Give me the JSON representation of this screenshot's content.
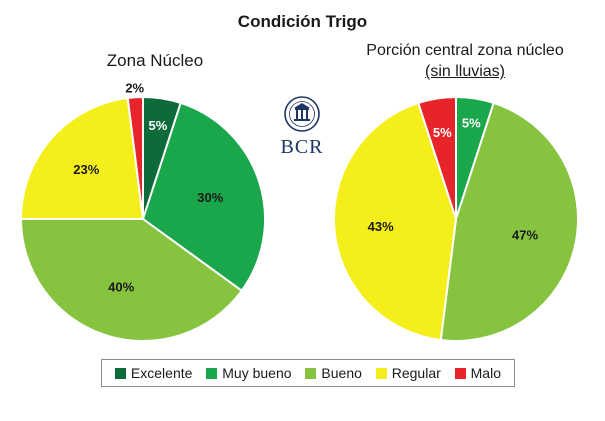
{
  "title": "Condición Trigo",
  "logo_text": "BCR",
  "chart_data": [
    {
      "type": "pie",
      "title": "Zona Núcleo",
      "slices": [
        {
          "category": "Excelente",
          "value": 5,
          "label": "5%",
          "color": "#0d6b3a",
          "label_color": "#ffffff"
        },
        {
          "category": "Muy bueno",
          "value": 30,
          "label": "30%",
          "color": "#1aa64a",
          "label_color": "#1a1a1a"
        },
        {
          "category": "Bueno",
          "value": 40,
          "label": "40%",
          "color": "#86c440",
          "label_color": "#1a1a1a"
        },
        {
          "category": "Regular",
          "value": 23,
          "label": "23%",
          "color": "#f4ef1a",
          "label_color": "#1a1a1a"
        },
        {
          "category": "Malo",
          "value": 2,
          "label": "2%",
          "color": "#e8242b",
          "label_color": "#1a1a1a"
        }
      ]
    },
    {
      "type": "pie",
      "title": "Porción central zona núcleo",
      "title_line2": "(sin lluvias)",
      "slices": [
        {
          "category": "Muy bueno",
          "value": 5,
          "label": "5%",
          "color": "#1aa64a",
          "label_color": "#ffffff"
        },
        {
          "category": "Bueno",
          "value": 47,
          "label": "47%",
          "color": "#86c440",
          "label_color": "#1a1a1a"
        },
        {
          "category": "Regular",
          "value": 43,
          "label": "43%",
          "color": "#f4ef1a",
          "label_color": "#1a1a1a"
        },
        {
          "category": "Malo",
          "value": 5,
          "label": "5%",
          "color": "#e8242b",
          "label_color": "#ffffff"
        }
      ]
    }
  ],
  "legend": [
    {
      "label": "Excelente",
      "color": "#0d6b3a"
    },
    {
      "label": "Muy bueno",
      "color": "#1aa64a"
    },
    {
      "label": "Bueno",
      "color": "#86c440"
    },
    {
      "label": "Regular",
      "color": "#f4ef1a"
    },
    {
      "label": "Malo",
      "color": "#e8242b"
    }
  ]
}
